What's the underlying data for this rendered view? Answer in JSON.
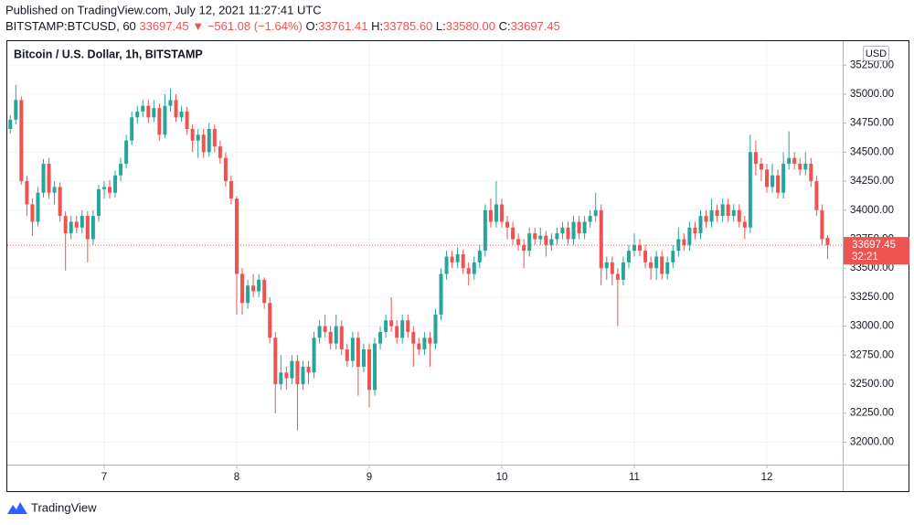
{
  "header": {
    "published": "Published on TradingView.com, July 12, 2021 11:27:41 UTC",
    "symbol": "BITSTAMP:BTCUSD, 60",
    "last": "33697.45",
    "change": "▼ −561.08 (−1.64%)",
    "ohlc": [
      {
        "label": "O:",
        "value": "33761.41"
      },
      {
        "label": "H:",
        "value": "33785.60"
      },
      {
        "label": "L:",
        "value": "33580.00"
      },
      {
        "label": "C:",
        "value": "33697.45"
      }
    ]
  },
  "footer": {
    "brand": "TradingView"
  },
  "chart_data": {
    "type": "candlestick",
    "title": "Bitcoin / U.S. Dollar, 1h, BITSTAMP",
    "currency": "USD",
    "countdown": "32:21",
    "up_color": "#26a69a",
    "down_color": "#ef5350",
    "grid": true,
    "xlim": [
      6.46,
      157.74
    ],
    "xticks": [
      {
        "value": 24,
        "label": "7"
      },
      {
        "value": 48,
        "label": "8"
      },
      {
        "value": 72,
        "label": "9"
      },
      {
        "value": 96,
        "label": "10"
      },
      {
        "value": 120,
        "label": "11"
      },
      {
        "value": 144,
        "label": "12"
      }
    ],
    "ylim": [
      31806,
      35457
    ],
    "yticks": [
      {
        "value": 32000,
        "label": "32000.00"
      },
      {
        "value": 32250,
        "label": "32250.00"
      },
      {
        "value": 32500,
        "label": "32500.00"
      },
      {
        "value": 32750,
        "label": "32750.00"
      },
      {
        "value": 33000,
        "label": "33000.00"
      },
      {
        "value": 33250,
        "label": "33250.00"
      },
      {
        "value": 33500,
        "label": "33500.00"
      },
      {
        "value": 33750,
        "label": "33750.00"
      },
      {
        "value": 34000,
        "label": "34000.00"
      },
      {
        "value": 34250,
        "label": "34250.00"
      },
      {
        "value": 34500,
        "label": "34500.00"
      },
      {
        "value": 34750,
        "label": "34750.00"
      },
      {
        "value": 35000,
        "label": "35000.00"
      },
      {
        "value": 35250,
        "label": "35250.00"
      }
    ],
    "x": [
      7,
      8,
      9,
      10,
      11,
      12,
      13,
      14,
      15,
      16,
      17,
      18,
      19,
      20,
      21,
      22,
      23,
      24,
      25,
      26,
      27,
      28,
      29,
      30,
      31,
      32,
      33,
      34,
      35,
      36,
      37,
      38,
      39,
      40,
      41,
      42,
      43,
      44,
      45,
      46,
      47,
      48,
      49,
      50,
      51,
      52,
      53,
      54,
      55,
      56,
      57,
      58,
      59,
      60,
      61,
      62,
      63,
      64,
      65,
      66,
      67,
      68,
      69,
      70,
      71,
      72,
      73,
      74,
      75,
      76,
      77,
      78,
      79,
      80,
      81,
      82,
      83,
      84,
      85,
      86,
      87,
      88,
      89,
      90,
      91,
      92,
      93,
      94,
      95,
      96,
      97,
      98,
      99,
      100,
      101,
      102,
      103,
      104,
      105,
      106,
      107,
      108,
      109,
      110,
      111,
      112,
      113,
      114,
      115,
      116,
      117,
      118,
      119,
      120,
      121,
      122,
      123,
      124,
      125,
      126,
      127,
      128,
      129,
      130,
      131,
      132,
      133,
      134,
      135,
      136,
      137,
      138,
      139,
      140,
      141,
      142,
      143,
      144,
      145,
      146,
      147,
      148,
      149,
      150,
      151,
      152,
      153,
      154,
      155
    ],
    "open": [
      34700,
      34780,
      34950,
      34250,
      34050,
      33900,
      34150,
      34400,
      34150,
      34200,
      33950,
      33800,
      33900,
      33850,
      33950,
      33750,
      33950,
      34180,
      34200,
      34150,
      34300,
      34400,
      34600,
      34800,
      34850,
      34900,
      34800,
      34880,
      34650,
      34900,
      34950,
      34800,
      34850,
      34700,
      34600,
      34650,
      34500,
      34700,
      34550,
      34450,
      34250,
      34100,
      33450,
      33200,
      33350,
      33300,
      33400,
      33200,
      32900,
      32500,
      32600,
      32550,
      32700,
      32500,
      32650,
      32600,
      32900,
      33000,
      32950,
      32850,
      33000,
      32800,
      32700,
      32900,
      32650,
      32800,
      32450,
      32850,
      32950,
      33050,
      33000,
      32900,
      33050,
      32950,
      32850,
      32800,
      32900,
      32850,
      33100,
      33450,
      33600,
      33550,
      33620,
      33500,
      33450,
      33550,
      33650,
      34000,
      33900,
      34050,
      33900,
      33850,
      33750,
      33700,
      33650,
      33800,
      33750,
      33780,
      33700,
      33750,
      33800,
      33850,
      33750,
      33900,
      33800,
      33900,
      33950,
      34000,
      33500,
      33550,
      33450,
      33400,
      33550,
      33650,
      33700,
      33650,
      33550,
      33500,
      33600,
      33450,
      33550,
      33650,
      33750,
      33700,
      33850,
      33800,
      33950,
      33900,
      34000,
      33950,
      34050,
      33950,
      34000,
      33900,
      33850,
      34500,
      34400,
      34350,
      34200,
      34300,
      34150,
      34400,
      34450,
      34400,
      34350,
      34400,
      34250,
      34000,
      33761.41
    ],
    "high": [
      34820,
      35080,
      34980,
      34300,
      34100,
      34200,
      34440,
      34450,
      34250,
      34240,
      33990,
      33950,
      33950,
      34000,
      33990,
      34000,
      34220,
      34250,
      34260,
      34340,
      34450,
      34650,
      34850,
      34900,
      34950,
      34950,
      34950,
      34920,
      35000,
      35050,
      35000,
      34900,
      34890,
      34740,
      34700,
      34700,
      34750,
      34740,
      34600,
      34500,
      34300,
      34120,
      33500,
      33400,
      33450,
      33450,
      33420,
      33250,
      32950,
      32750,
      32650,
      32750,
      32750,
      32700,
      32700,
      32950,
      33050,
      33100,
      33000,
      33100,
      33050,
      32850,
      32950,
      32950,
      32850,
      32850,
      32900,
      33000,
      33100,
      33250,
      33050,
      33100,
      33100,
      33000,
      32900,
      32950,
      32950,
      33150,
      33500,
      33650,
      33650,
      33680,
      33660,
      33550,
      33600,
      33700,
      34050,
      34100,
      34250,
      34100,
      33950,
      33900,
      33800,
      33750,
      33850,
      33850,
      33850,
      33820,
      33800,
      33850,
      33900,
      33900,
      33950,
      33950,
      33950,
      34000,
      34150,
      34050,
      33600,
      33600,
      33500,
      33600,
      33700,
      33800,
      33750,
      33700,
      33600,
      33650,
      33650,
      33600,
      33700,
      33850,
      33800,
      33900,
      33900,
      34000,
      34000,
      34100,
      34050,
      34100,
      34100,
      34050,
      34050,
      33950,
      34650,
      34600,
      34450,
      34400,
      34400,
      34350,
      34500,
      34680,
      34500,
      34450,
      34500,
      34450,
      34300,
      34050,
      33785.6
    ],
    "low": [
      34660,
      34740,
      34220,
      33950,
      33780,
      33860,
      34110,
      34100,
      34050,
      33900,
      33480,
      33750,
      33800,
      33800,
      33550,
      33700,
      33900,
      34100,
      34100,
      34110,
      34250,
      34360,
      34560,
      34750,
      34800,
      34750,
      34760,
      34600,
      34620,
      34850,
      34760,
      34760,
      34650,
      34500,
      34450,
      34450,
      34460,
      34500,
      34400,
      34200,
      34050,
      33100,
      33100,
      33150,
      33250,
      33250,
      33150,
      32850,
      32250,
      32450,
      32450,
      32500,
      32100,
      32450,
      32500,
      32550,
      32850,
      32900,
      32800,
      32800,
      32750,
      32650,
      32650,
      32400,
      32600,
      32300,
      32400,
      32800,
      32900,
      32950,
      32850,
      32850,
      32900,
      32650,
      32750,
      32750,
      32650,
      32800,
      33050,
      33400,
      33500,
      33500,
      33450,
      33350,
      33400,
      33500,
      33600,
      33850,
      33850,
      33850,
      33750,
      33700,
      33650,
      33500,
      33600,
      33700,
      33700,
      33600,
      33650,
      33700,
      33750,
      33700,
      33700,
      33750,
      33750,
      33850,
      33900,
      33350,
      33400,
      33350,
      33000,
      33350,
      33500,
      33600,
      33600,
      33500,
      33400,
      33400,
      33400,
      33400,
      33500,
      33600,
      33650,
      33650,
      33750,
      33750,
      33850,
      33850,
      33900,
      33900,
      33900,
      33900,
      33850,
      33750,
      33800,
      34300,
      34250,
      34150,
      34150,
      34100,
      34100,
      34350,
      34350,
      34300,
      34300,
      34200,
      33950,
      33700,
      33580
    ],
    "close": [
      34780,
      34950,
      34250,
      34050,
      33900,
      34150,
      34400,
      34150,
      34200,
      33950,
      33800,
      33900,
      33850,
      33950,
      33750,
      33950,
      34180,
      34200,
      34150,
      34300,
      34400,
      34600,
      34800,
      34850,
      34900,
      34800,
      34880,
      34650,
      34900,
      34950,
      34800,
      34850,
      34700,
      34600,
      34650,
      34500,
      34700,
      34550,
      34450,
      34250,
      34100,
      33450,
      33200,
      33350,
      33300,
      33400,
      33200,
      32900,
      32500,
      32600,
      32550,
      32700,
      32500,
      32650,
      32600,
      32900,
      33000,
      32950,
      32850,
      33000,
      32800,
      32700,
      32900,
      32650,
      32800,
      32450,
      32850,
      32950,
      33050,
      33000,
      32900,
      33050,
      32950,
      32850,
      32800,
      32900,
      32850,
      33100,
      33450,
      33600,
      33550,
      33620,
      33500,
      33450,
      33550,
      33650,
      34000,
      33900,
      34050,
      33900,
      33850,
      33750,
      33700,
      33650,
      33800,
      33750,
      33780,
      33700,
      33750,
      33800,
      33850,
      33750,
      33900,
      33800,
      33900,
      33950,
      34000,
      33500,
      33550,
      33450,
      33400,
      33550,
      33650,
      33700,
      33650,
      33550,
      33500,
      33600,
      33450,
      33550,
      33650,
      33750,
      33700,
      33850,
      33800,
      33950,
      33900,
      34000,
      33950,
      34050,
      33950,
      34000,
      33900,
      33850,
      34500,
      34400,
      34350,
      34200,
      34300,
      34150,
      34400,
      34450,
      34400,
      34350,
      34400,
      34250,
      34000,
      33750,
      33697.45
    ]
  }
}
